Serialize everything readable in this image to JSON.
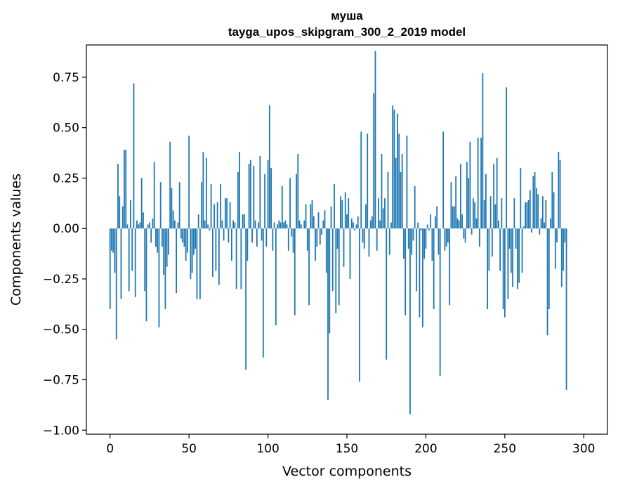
{
  "chart_data": {
    "type": "bar",
    "title": "муша",
    "subtitle": "tayga_upos_skipgram_300_2_2019 model",
    "xlabel": "Vector components",
    "ylabel": "Components values",
    "xlim": [
      -15,
      315
    ],
    "ylim": [
      -1.02,
      0.91
    ],
    "xticks": [
      0,
      50,
      100,
      150,
      200,
      250,
      300
    ],
    "xtick_labels": [
      "0",
      "50",
      "100",
      "150",
      "200",
      "250",
      "300"
    ],
    "yticks": [
      -1.0,
      -0.75,
      -0.5,
      -0.25,
      0.0,
      0.25,
      0.5,
      0.75
    ],
    "ytick_labels": [
      "−1.00",
      "−0.75",
      "−0.50",
      "−0.25",
      "0.00",
      "0.25",
      "0.50",
      "0.75"
    ],
    "bar_color": "#1f77b4",
    "grid": false,
    "values": [
      -0.4,
      -0.11,
      -0.12,
      -0.22,
      -0.55,
      0.32,
      0.16,
      -0.35,
      0.11,
      0.39,
      0.39,
      0.02,
      -0.31,
      0.14,
      -0.21,
      0.72,
      -0.34,
      0.04,
      0.02,
      0.03,
      0.25,
      0.08,
      -0.31,
      -0.46,
      0.02,
      0.03,
      -0.07,
      0.05,
      0.33,
      -0.09,
      -0.12,
      -0.49,
      0.23,
      -0.09,
      -0.23,
      -0.4,
      -0.19,
      -0.13,
      0.43,
      0.2,
      0.09,
      0.04,
      -0.32,
      0.03,
      0.23,
      -0.05,
      -0.07,
      -0.09,
      -0.16,
      -0.12,
      0.46,
      -0.25,
      -0.22,
      -0.13,
      -0.1,
      -0.35,
      0.07,
      -0.35,
      0.23,
      0.38,
      0.04,
      0.35,
      0.02,
      -0.01,
      0.22,
      -0.24,
      0.12,
      -0.21,
      0.13,
      -0.28,
      0.22,
      0.04,
      -0.06,
      0.15,
      0.15,
      -0.07,
      0.13,
      -0.16,
      0.04,
      0.03,
      -0.3,
      0.28,
      0.38,
      -0.3,
      0.07,
      0.07,
      -0.7,
      -0.16,
      0.32,
      0.34,
      -0.07,
      0.31,
      0.04,
      -0.09,
      0.03,
      0.36,
      -0.06,
      -0.64,
      0.27,
      -0.09,
      0.34,
      0.61,
      0.3,
      -0.11,
      0.03,
      -0.48,
      0.02,
      0.04,
      0.03,
      0.21,
      0.03,
      0.04,
      0.02,
      -0.11,
      0.25,
      -0.04,
      -0.12,
      -0.43,
      0.27,
      0.37,
      0.04,
      0.02,
      0.0,
      0.04,
      0.12,
      -0.11,
      -0.38,
      0.12,
      0.14,
      0.06,
      -0.16,
      -0.09,
      0.08,
      -0.08,
      -0.03,
      0.04,
      0.09,
      -0.22,
      -0.85,
      -0.52,
      0.11,
      -0.31,
      0.22,
      -0.42,
      -0.1,
      -0.38,
      0.16,
      0.14,
      -0.19,
      0.18,
      0.07,
      0.15,
      -0.25,
      0.05,
      0.03,
      -0.01,
      0.02,
      0.06,
      -0.76,
      0.48,
      -0.07,
      -0.1,
      0.12,
      0.47,
      -0.14,
      0.04,
      0.06,
      0.67,
      0.88,
      -0.11,
      0.15,
      0.04,
      0.37,
      0.1,
      0.15,
      -0.65,
      0.28,
      -0.13,
      0.03,
      0.61,
      0.59,
      0.35,
      0.57,
      0.47,
      0.28,
      0.37,
      -0.15,
      -0.43,
      0.46,
      -0.1,
      -0.92,
      -0.13,
      -0.06,
      0.21,
      -0.31,
      0.03,
      -0.44,
      -0.01,
      -0.49,
      -0.15,
      -0.1,
      0.02,
      -0.01,
      0.07,
      -0.16,
      -0.4,
      0.06,
      0.11,
      -0.13,
      -0.73,
      0.0,
      0.48,
      -0.11,
      -0.09,
      -0.07,
      -0.38,
      0.23,
      0.11,
      0.11,
      0.26,
      0.05,
      0.04,
      0.32,
      0.07,
      -0.05,
      -0.07,
      0.33,
      0.25,
      0.43,
      -0.03,
      0.15,
      0.13,
      0.05,
      0.45,
      -0.09,
      0.45,
      0.77,
      0.14,
      0.27,
      -0.4,
      -0.21,
      0.16,
      -0.14,
      0.32,
      0.12,
      0.35,
      0.04,
      -0.21,
      0.15,
      -0.4,
      -0.44,
      0.7,
      -0.35,
      -0.1,
      -0.22,
      -0.29,
      0.15,
      -0.1,
      -0.3,
      -0.27,
      0.3,
      -0.22,
      0.01,
      0.13,
      0.13,
      0.14,
      0.19,
      -0.02,
      0.26,
      0.28,
      0.2,
      0.17,
      -0.03,
      0.05,
      0.16,
      0.03,
      0.14,
      -0.53,
      -0.4,
      0.05,
      0.28,
      0.18,
      -0.2,
      -0.07,
      0.38,
      0.34,
      -0.29,
      -0.21,
      -0.07,
      -0.8
    ]
  }
}
